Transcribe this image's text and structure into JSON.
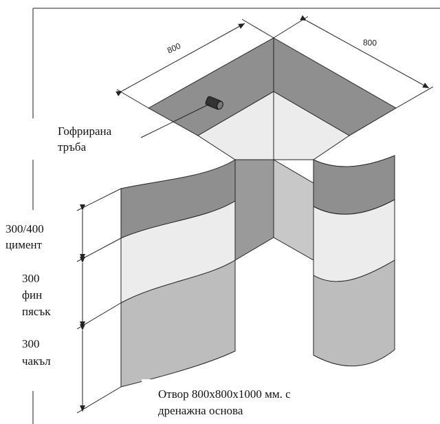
{
  "diagram": {
    "dimensions": {
      "top_left": "800",
      "top_right": "800"
    },
    "labels": {
      "pipe_line1": "Гофрирана",
      "pipe_line2": "тръба",
      "layer1_value": "300/400",
      "layer1_material": "цимент",
      "layer2_value": "300",
      "layer2_material_line1": "фин",
      "layer2_material_line2": "пясък",
      "layer3_value": "300",
      "layer3_material": "чакъл"
    },
    "caption": {
      "line1": "Отвор 800x800x1000 мм. с",
      "line2": "дренажна основа"
    },
    "colors": {
      "cement": "#8f8f8f",
      "sand": "#ececec",
      "gravel": "#bdbdbd",
      "inner_dark": "#9a9a9a",
      "inner_light": "#c8c8c8",
      "line": "#222222"
    }
  }
}
